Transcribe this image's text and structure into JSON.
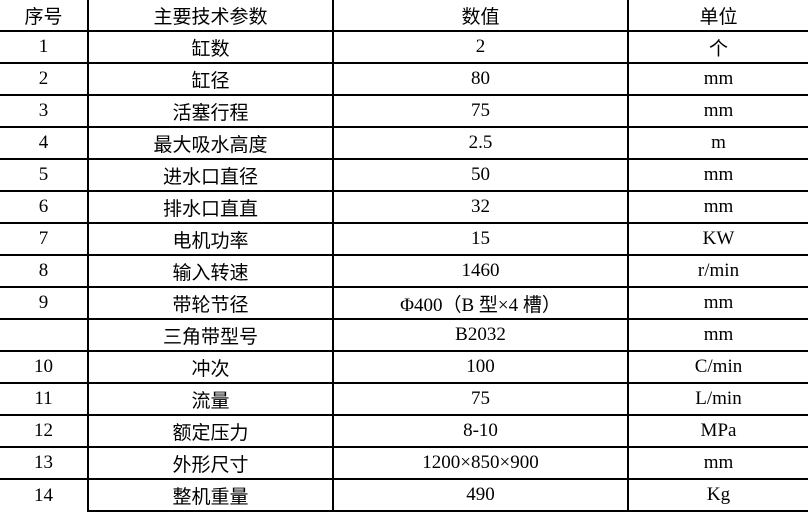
{
  "table": {
    "columns": [
      {
        "key": "serial",
        "label": "序号"
      },
      {
        "key": "parameter",
        "label": "主要技术参数"
      },
      {
        "key": "value",
        "label": "数值"
      },
      {
        "key": "unit",
        "label": "单位"
      }
    ],
    "rows": [
      {
        "serial": "1",
        "parameter": "缸数",
        "value": "2",
        "unit": "个"
      },
      {
        "serial": "2",
        "parameter": "缸径",
        "value": "80",
        "unit": "mm"
      },
      {
        "serial": "3",
        "parameter": "活塞行程",
        "value": "75",
        "unit": "mm"
      },
      {
        "serial": "4",
        "parameter": "最大吸水高度",
        "value": "2.5",
        "unit": "m"
      },
      {
        "serial": "5",
        "parameter": "进水口直径",
        "value": "50",
        "unit": "mm"
      },
      {
        "serial": "6",
        "parameter": "排水口直直",
        "value": "32",
        "unit": "mm"
      },
      {
        "serial": "7",
        "parameter": "电机功率",
        "value": "15",
        "unit": "KW"
      },
      {
        "serial": "8",
        "parameter": "输入转速",
        "value": "1460",
        "unit": "r/min"
      },
      {
        "serial": "9",
        "parameter": "带轮节径",
        "value": "Φ400（B 型×4 槽）",
        "unit": "mm"
      },
      {
        "serial": "",
        "parameter": "三角带型号",
        "value": "B2032",
        "unit": "mm"
      },
      {
        "serial": "10",
        "parameter": "冲次",
        "value": "100",
        "unit": "C/min"
      },
      {
        "serial": "11",
        "parameter": "流量",
        "value": "75",
        "unit": "L/min"
      },
      {
        "serial": "12",
        "parameter": "额定压力",
        "value": "8-10",
        "unit": "MPa"
      },
      {
        "serial": "13",
        "parameter": "外形尺寸",
        "value": "1200×850×900",
        "unit": "mm"
      },
      {
        "serial": "14",
        "parameter": "整机重量",
        "value": "490",
        "unit": "Kg"
      }
    ]
  },
  "colors": {
    "border": "#000000",
    "text": "#000000",
    "background": "#ffffff"
  }
}
